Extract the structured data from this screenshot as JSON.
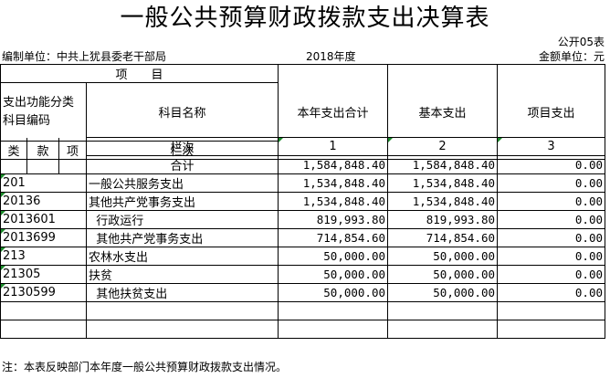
{
  "title": "一般公共预算财政拨款支出决算表",
  "table_code": "公开05表",
  "org_label": "编制单位：中共上犹县委老干部局",
  "year": "2018年度",
  "unit_label": "金额单位：元",
  "header": {
    "item": "项　　目",
    "code_label": "支出功能分类科目编码",
    "name_label": "科目名称",
    "col_total": "本年支出合计",
    "col_basic": "基本支出",
    "col_project": "项目支出",
    "lei": "类",
    "kuan": "款",
    "xiang": "项",
    "row_order": "栏次",
    "n1": "1",
    "n2": "2",
    "n3": "3",
    "sum_label": "合计"
  },
  "totals": {
    "total": "1,584,848.40",
    "basic": "1,584,848.40",
    "project": "0.00"
  },
  "rows": [
    {
      "code": "201",
      "name": "一般公共服务支出",
      "total": "1,534,848.40",
      "basic": "1,534,848.40",
      "project": "0.00"
    },
    {
      "code": "20136",
      "name": "其他共产党事务支出",
      "total": "1,534,848.40",
      "basic": "1,534,848.40",
      "project": "0.00"
    },
    {
      "code": "2013601",
      "name": "  行政运行",
      "total": "819,993.80",
      "basic": "819,993.80",
      "project": "0.00"
    },
    {
      "code": "2013699",
      "name": "  其他共产党事务支出",
      "total": "714,854.60",
      "basic": "714,854.60",
      "project": "0.00"
    },
    {
      "code": "213",
      "name": "农林水支出",
      "total": "50,000.00",
      "basic": "50,000.00",
      "project": "0.00"
    },
    {
      "code": "21305",
      "name": "扶贫",
      "total": "50,000.00",
      "basic": "50,000.00",
      "project": "0.00"
    },
    {
      "code": "2130599",
      "name": "  其他扶贫支出",
      "total": "50,000.00",
      "basic": "50,000.00",
      "project": "0.00"
    }
  ],
  "note": "注：本表反映部门本年度一般公共预算财政拨款支出情况。",
  "colors": {
    "grid": "#000000",
    "marker": "#1a8a2a"
  }
}
